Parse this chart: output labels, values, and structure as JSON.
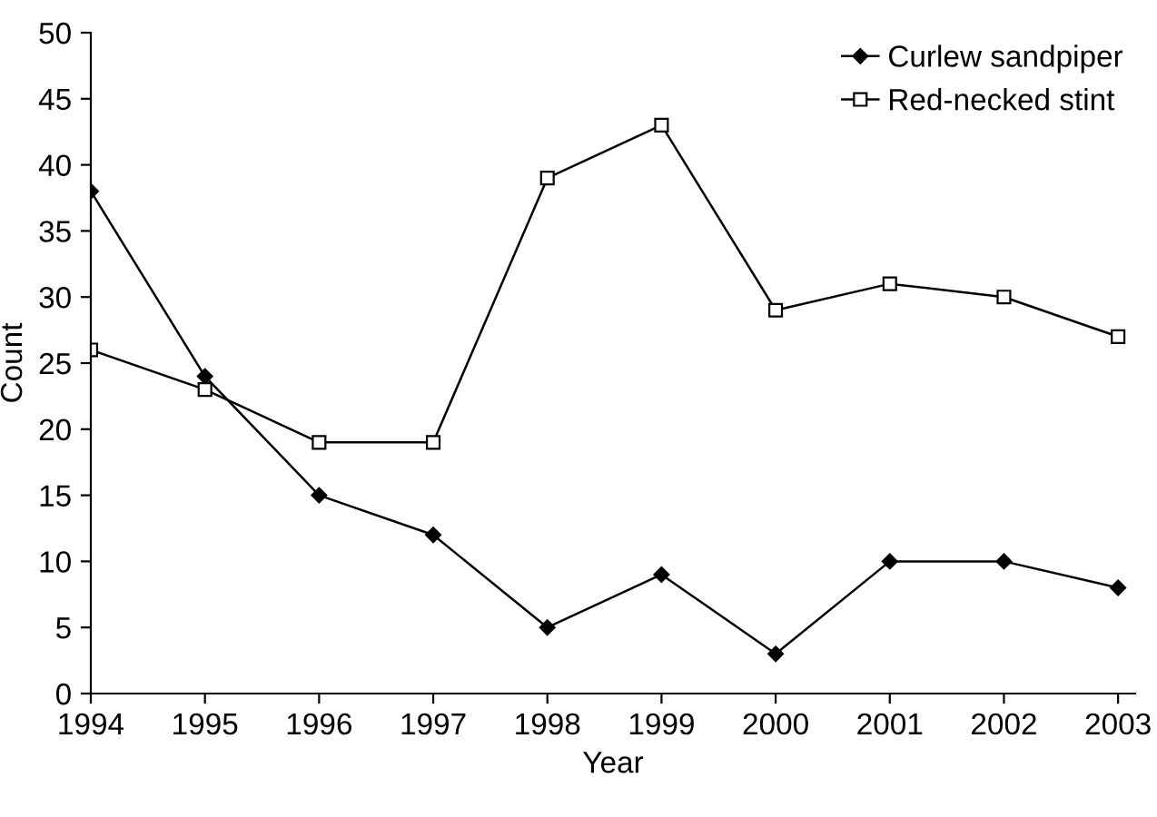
{
  "chart_data": {
    "type": "line",
    "xlabel": "Year",
    "ylabel": "Count",
    "categories": [
      "1994",
      "1995",
      "1996",
      "1997",
      "1998",
      "1999",
      "2000",
      "2001",
      "2002",
      "2003"
    ],
    "series": [
      {
        "name": "Curlew sandpiper",
        "color": "#000000",
        "marker": "diamond",
        "values": [
          38,
          24,
          15,
          12,
          5,
          9,
          3,
          10,
          10,
          8
        ]
      },
      {
        "name": "Red-necked stint",
        "color": "#000000",
        "marker": "square",
        "values": [
          26,
          23,
          19,
          19,
          39,
          43,
          29,
          31,
          30,
          27
        ]
      }
    ],
    "ylim": [
      0,
      50
    ],
    "yticks": [
      0,
      5,
      10,
      15,
      20,
      25,
      30,
      35,
      40,
      45,
      50
    ],
    "grid": false,
    "legend": "top right",
    "line_style": "solid"
  }
}
